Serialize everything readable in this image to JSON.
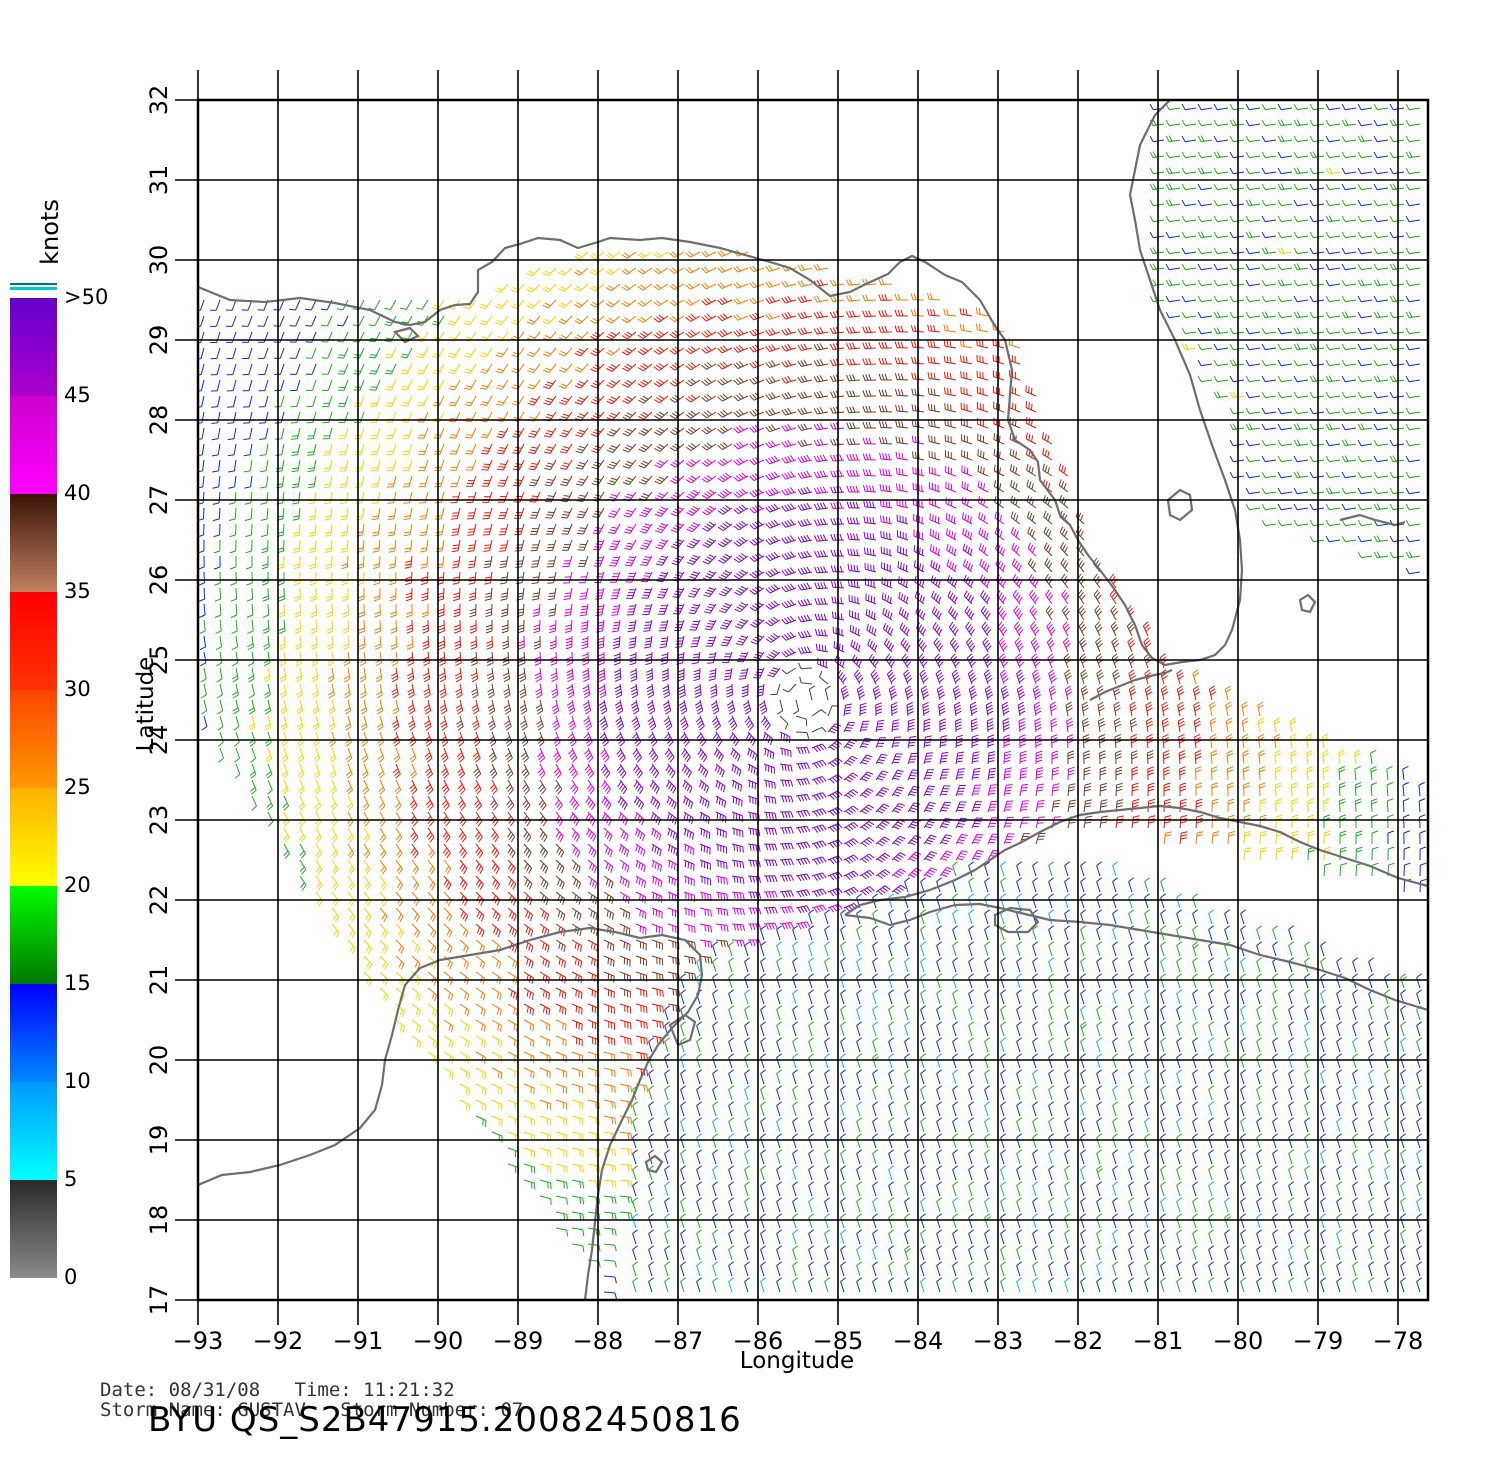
{
  "colorbar": {
    "unit": "knots",
    "labels": [
      "0",
      "5",
      "10",
      "15",
      "20",
      "25",
      "30",
      "35",
      "40",
      "45",
      ">50"
    ],
    "bands": [
      {
        "range": [
          0,
          5
        ],
        "from": "#8a8a8a",
        "to": "#2a2a2a"
      },
      {
        "range": [
          5,
          10
        ],
        "from": "#00ffff",
        "to": "#0099ff"
      },
      {
        "range": [
          10,
          15
        ],
        "from": "#0088ff",
        "to": "#0000ff"
      },
      {
        "range": [
          15,
          20
        ],
        "from": "#007700",
        "to": "#00ff00"
      },
      {
        "range": [
          20,
          25
        ],
        "from": "#ffff00",
        "to": "#ffb000"
      },
      {
        "range": [
          25,
          30
        ],
        "from": "#ff9900",
        "to": "#ff4400"
      },
      {
        "range": [
          30,
          35
        ],
        "from": "#ff3300",
        "to": "#ff0000"
      },
      {
        "range": [
          35,
          40
        ],
        "from": "#c08060",
        "to": "#3a1408"
      },
      {
        "range": [
          40,
          45
        ],
        "from": "#ff00ff",
        "to": "#cc00cc"
      },
      {
        "range": [
          45,
          50
        ],
        "from": "#aa00cc",
        "to": "#6600cc"
      }
    ]
  },
  "axes": {
    "xlabel": "Longitude",
    "ylabel": "Latitude",
    "lon_range": [
      -93,
      -77.6
    ],
    "lat_range": [
      17,
      32
    ],
    "lon_ticks": [
      "−93",
      "−92",
      "−91",
      "−90",
      "−89",
      "−88",
      "−87",
      "−86",
      "−85",
      "−84",
      "−83",
      "−82",
      "−81",
      "−80",
      "−79",
      "−78"
    ],
    "lat_ticks": [
      "17",
      "18",
      "19",
      "20",
      "21",
      "22",
      "23",
      "24",
      "25",
      "26",
      "27",
      "28",
      "29",
      "30",
      "31",
      "32"
    ]
  },
  "storm": {
    "center_lon": -85.4,
    "center_lat": 24.5
  },
  "footer": {
    "date_label": "Date:",
    "date": "08/31/08",
    "time_label": "Time:",
    "time": "11:21:32",
    "name_label": "Storm Name:",
    "name": "GUSTAV",
    "number_label": "Storm Number:",
    "number": "07",
    "product_id": "BYU QS_S2B47915.20082450816"
  }
}
